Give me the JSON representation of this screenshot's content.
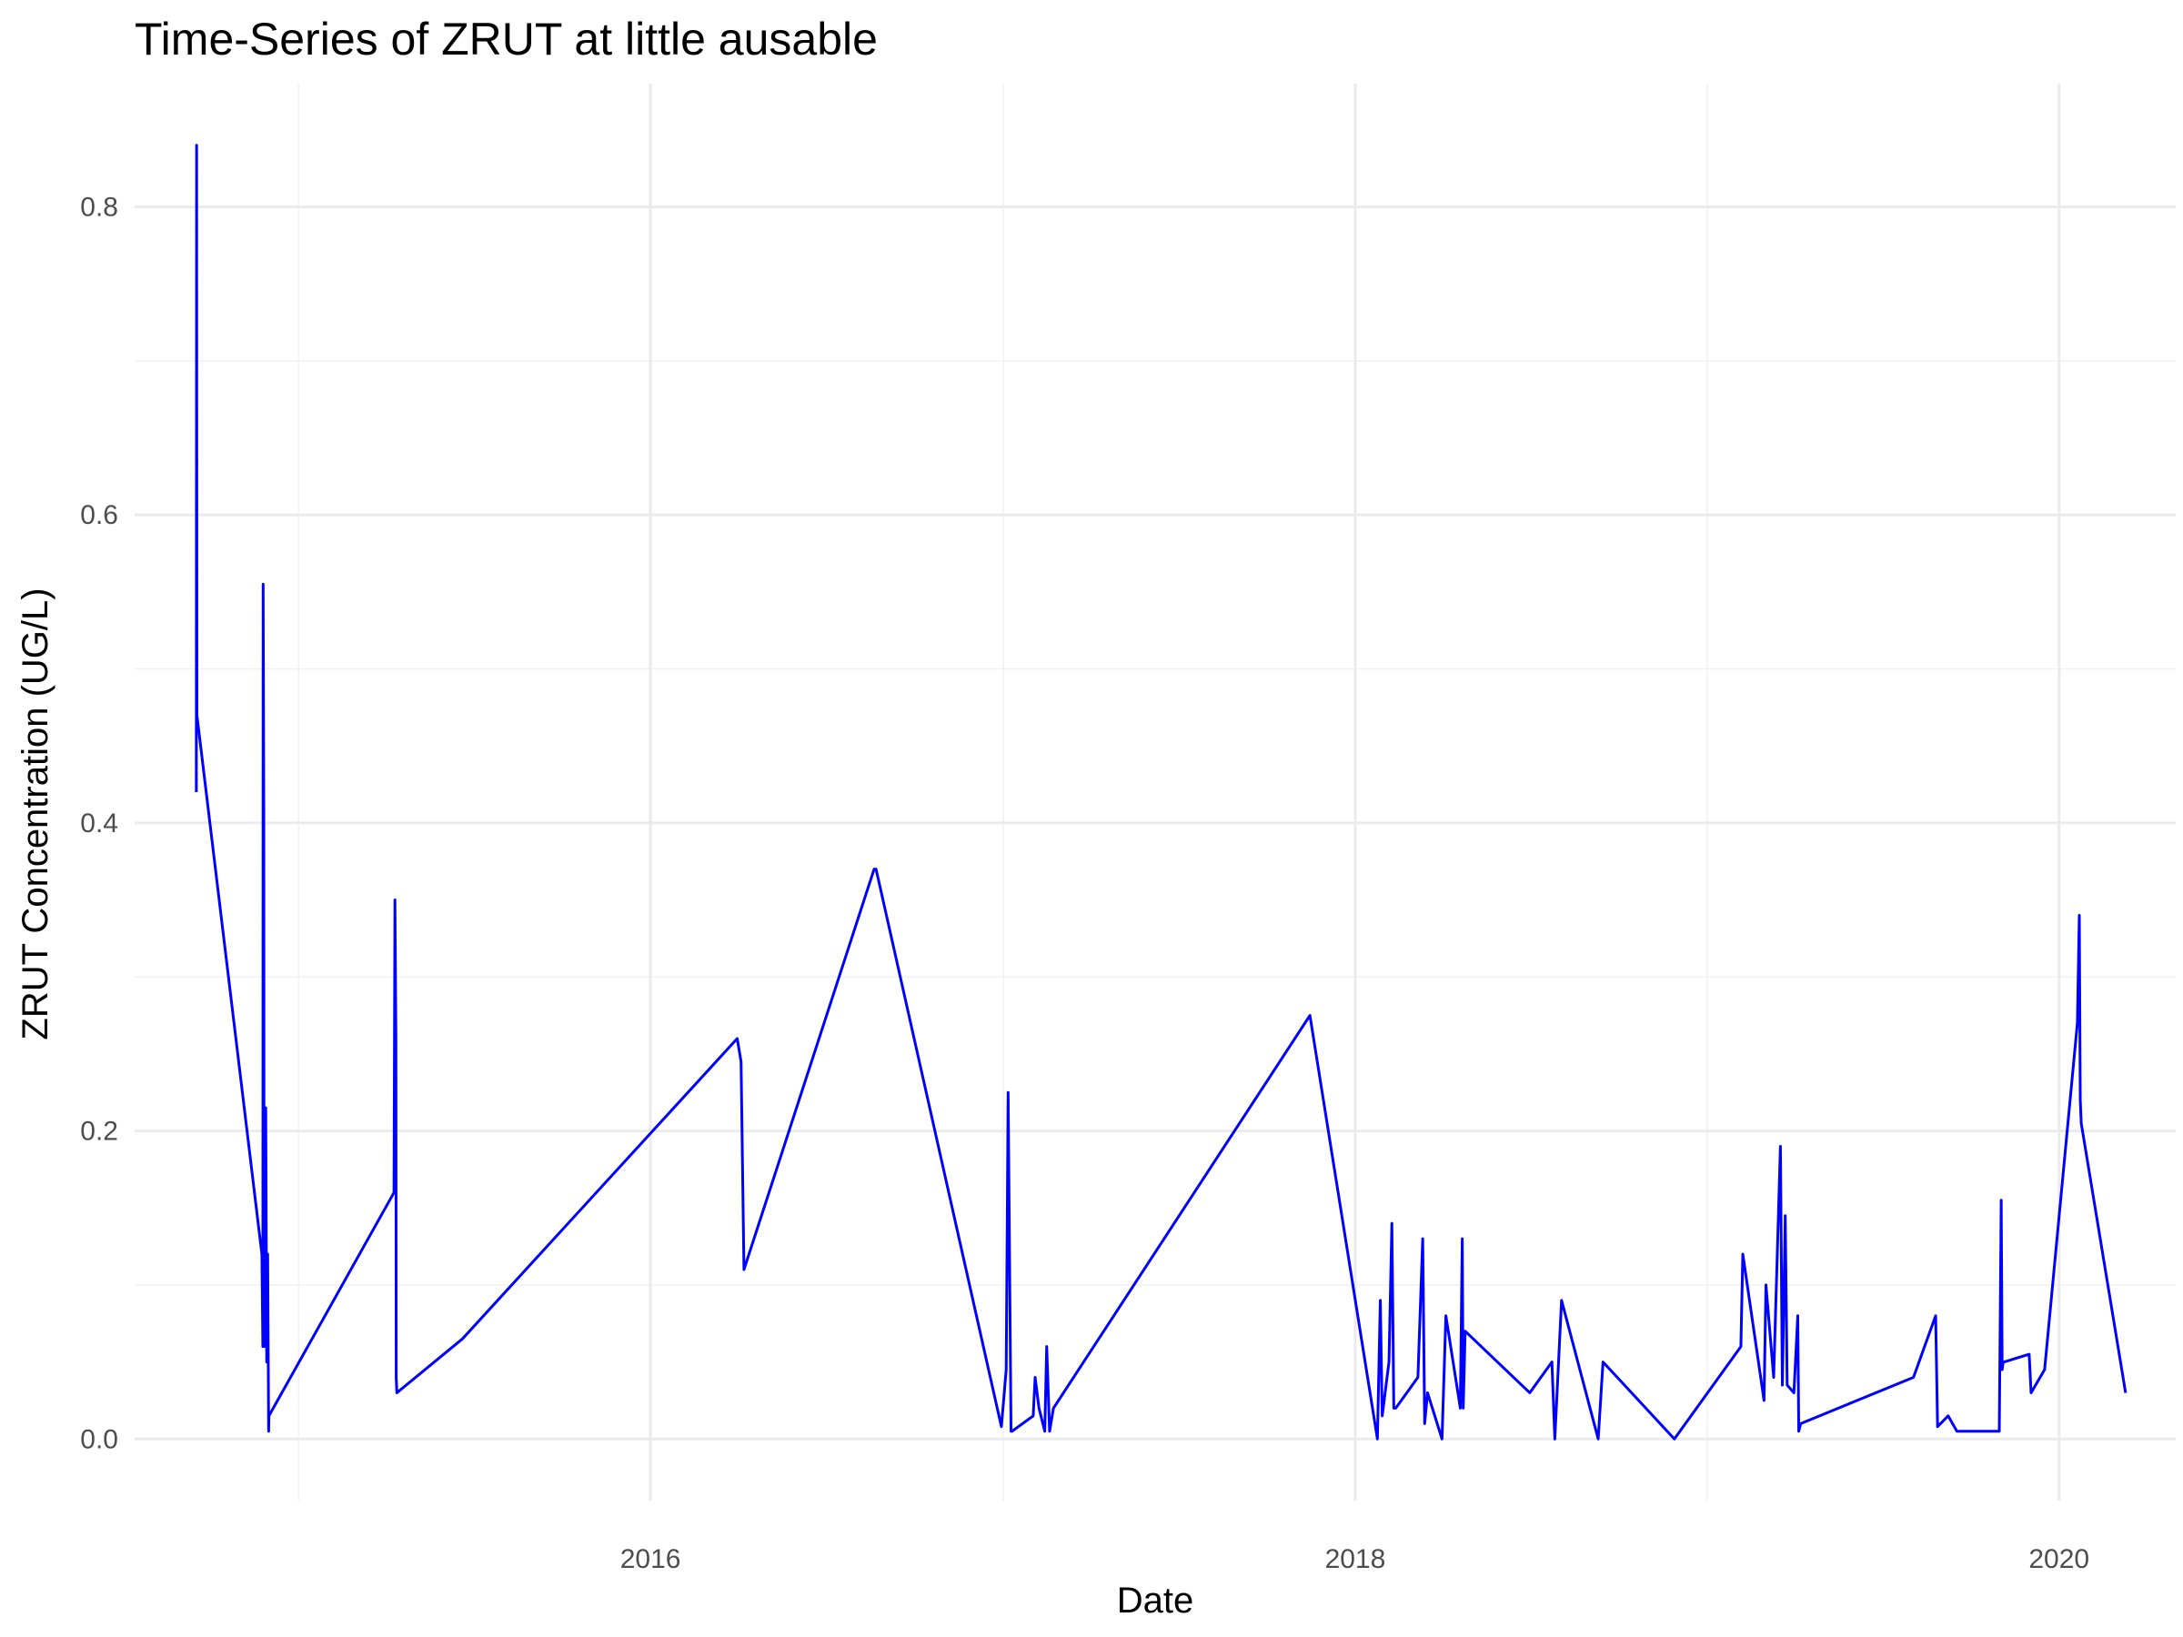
{
  "chart_data": {
    "type": "line",
    "title": "Time-Series of ZRUT at little ausable",
    "xlabel": "Date",
    "ylabel": "ZRUT Concentration (UG/L)",
    "x_ticks": [
      "2016",
      "2018",
      "2020"
    ],
    "y_ticks": [
      "0.0",
      "0.2",
      "0.4",
      "0.6",
      "0.8"
    ],
    "xlim": [
      "2014-07-15",
      "2020-05-01"
    ],
    "ylim": [
      -0.04,
      0.88
    ],
    "grid": true,
    "legend": "none",
    "line_color": "#0000ff",
    "series": [
      {
        "x": [
          "2014-09-17",
          "2014-09-17",
          "2014-09-17",
          "2014-11-24",
          "2014-11-25",
          "2014-11-25",
          "2014-11-26",
          "2014-11-26",
          "2014-11-28",
          "2014-11-29",
          "2014-11-30",
          "2014-12-01",
          "2014-12-01",
          "2015-04-10",
          "2015-04-11",
          "2015-04-12",
          "2015-04-12",
          "2015-04-13",
          "2015-06-20",
          "2016-03-31",
          "2016-04-04",
          "2016-04-07",
          "2016-08-20",
          "2016-08-22",
          "2016-12-30",
          "2017-01-04",
          "2017-01-06",
          "2017-01-09",
          "2017-01-10",
          "2017-02-01",
          "2017-02-03",
          "2017-02-07",
          "2017-02-13",
          "2017-02-15",
          "2017-02-18",
          "2017-02-22",
          "2017-11-15",
          "2018-01-24",
          "2018-01-27",
          "2018-01-29",
          "2018-02-05",
          "2018-02-08",
          "2018-02-10",
          "2018-02-12",
          "2018-03-07",
          "2018-03-12",
          "2018-03-14",
          "2018-03-17",
          "2018-04-01",
          "2018-04-05",
          "2018-04-20",
          "2018-04-22",
          "2018-04-23",
          "2018-04-25",
          "2018-07-01",
          "2018-07-24",
          "2018-07-27",
          "2018-08-03",
          "2018-09-10",
          "2018-09-15",
          "2018-11-28",
          "2019-02-05",
          "2019-02-07",
          "2019-03-01",
          "2019-03-03",
          "2019-03-11",
          "2019-03-18",
          "2019-03-20",
          "2019-03-23",
          "2019-03-25",
          "2019-04-01",
          "2019-04-05",
          "2019-04-06",
          "2019-04-08",
          "2019-08-03",
          "2019-08-26",
          "2019-08-28",
          "2019-09-08",
          "2019-09-17",
          "2019-10-31",
          "2019-11-02",
          "2019-11-03",
          "2019-11-04",
          "2019-11-05",
          "2019-12-01",
          "2019-12-03",
          "2019-12-17",
          "2020-01-20",
          "2020-01-22",
          "2020-01-23",
          "2020-01-24",
          "2020-03-10"
        ],
        "y": [
          0.42,
          0.84,
          0.47,
          0.12,
          0.06,
          0.555,
          0.4,
          0.06,
          0.215,
          0.05,
          0.12,
          0.005,
          0.015,
          0.16,
          0.35,
          0.26,
          0.04,
          0.03,
          0.065,
          0.26,
          0.245,
          0.11,
          0.37,
          0.37,
          0.008,
          0.045,
          0.225,
          0.005,
          0.005,
          0.015,
          0.04,
          0.02,
          0.005,
          0.06,
          0.005,
          0.02,
          0.275,
          0.0,
          0.09,
          0.015,
          0.05,
          0.14,
          0.02,
          0.02,
          0.04,
          0.13,
          0.01,
          0.03,
          0.0,
          0.08,
          0.02,
          0.13,
          0.02,
          0.07,
          0.03,
          0.05,
          0.0,
          0.09,
          0.0,
          0.05,
          0.0,
          0.06,
          0.12,
          0.025,
          0.1,
          0.04,
          0.19,
          0.035,
          0.145,
          0.035,
          0.03,
          0.08,
          0.005,
          0.01,
          0.04,
          0.08,
          0.008,
          0.015,
          0.005,
          0.005,
          0.155,
          0.045,
          0.05,
          0.05,
          0.055,
          0.03,
          0.045,
          0.27,
          0.34,
          0.22,
          0.205,
          0.03
        ]
      }
    ]
  }
}
